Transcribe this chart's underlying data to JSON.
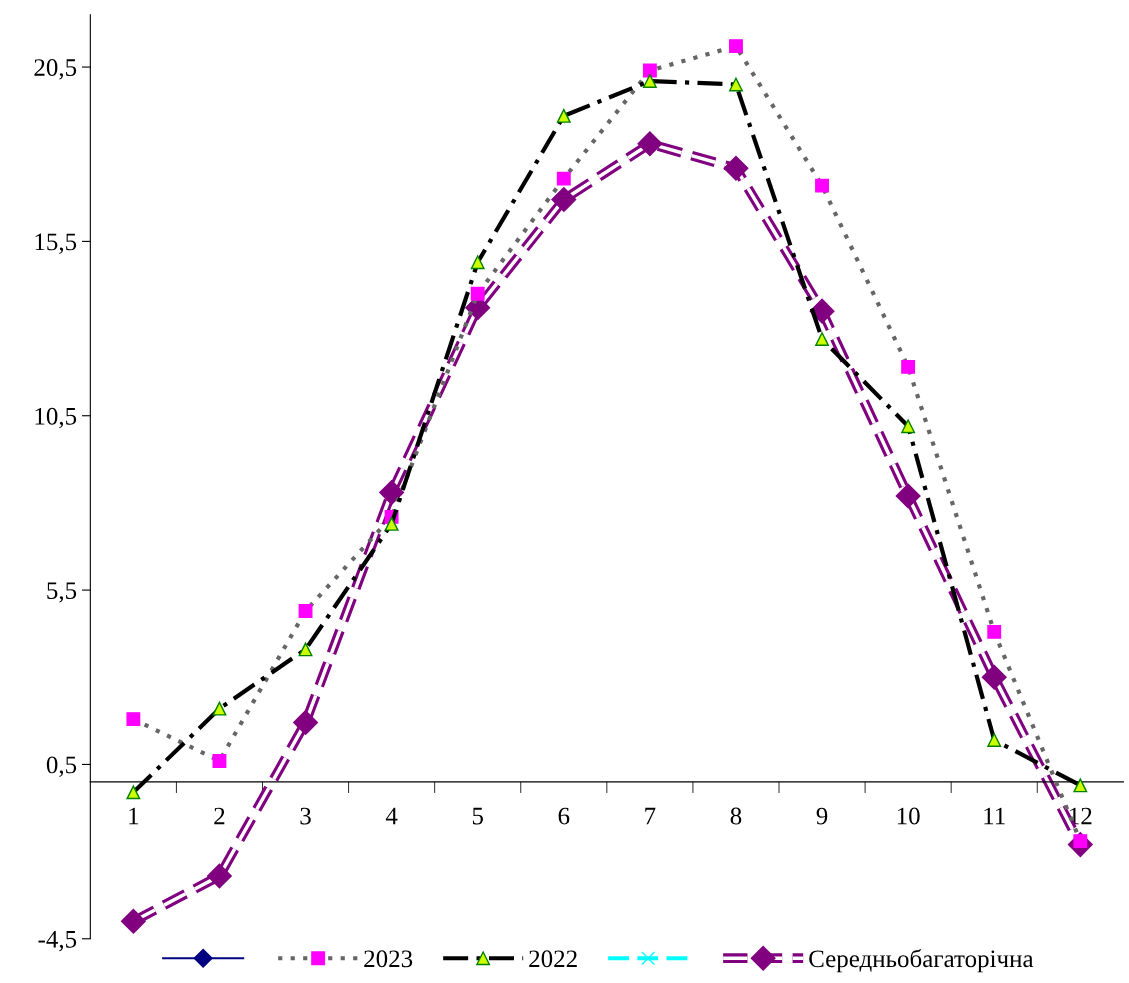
{
  "chart_data": {
    "type": "line",
    "categories": [
      "1",
      "2",
      "3",
      "4",
      "5",
      "6",
      "7",
      "8",
      "9",
      "10",
      "11",
      "12"
    ],
    "ylim": [
      -4.5,
      22
    ],
    "yticks": [
      {
        "value": -4.5,
        "label": "-4,5"
      },
      {
        "value": 0.5,
        "label": "0,5"
      },
      {
        "value": 5.5,
        "label": "5,5"
      },
      {
        "value": 10.5,
        "label": "10,5"
      },
      {
        "value": 15.5,
        "label": "15,5"
      },
      {
        "value": 20.5,
        "label": "20,5"
      }
    ],
    "grid": false,
    "legend": "bottom",
    "series": [
      {
        "color": "#000080",
        "marker": "diamond",
        "line_style": "solid",
        "values": [
          null,
          null,
          null,
          null,
          null,
          null,
          null,
          null,
          null,
          null,
          null,
          null
        ]
      },
      {
        "name": "2023",
        "color": "#ff00ff",
        "marker": "square",
        "line_style": "dotted",
        "values": [
          1.8,
          0.6,
          4.9,
          7.6,
          14.0,
          17.3,
          20.4,
          21.1,
          17.1,
          11.9,
          4.3,
          -1.7
        ]
      },
      {
        "name": "2022",
        "color": "#ccff00",
        "marker": "triangle",
        "line_style": "dashdot",
        "values": [
          -0.3,
          2.1,
          3.8,
          7.4,
          14.9,
          19.1,
          20.1,
          20.0,
          12.7,
          10.2,
          1.2,
          -0.1
        ]
      },
      {
        "color": "#00ffff",
        "marker": "cross",
        "line_style": "dashed",
        "values": [
          null,
          null,
          null,
          null,
          null,
          null,
          null,
          null,
          null,
          null,
          null,
          null
        ]
      },
      {
        "name": "Середньобагаторічна",
        "color": "#800080",
        "marker": "diamond",
        "line_style": "double",
        "values": [
          -4.0,
          -2.7,
          1.7,
          8.3,
          13.6,
          16.7,
          18.3,
          17.6,
          13.5,
          8.2,
          3.0,
          -1.8
        ]
      }
    ]
  }
}
